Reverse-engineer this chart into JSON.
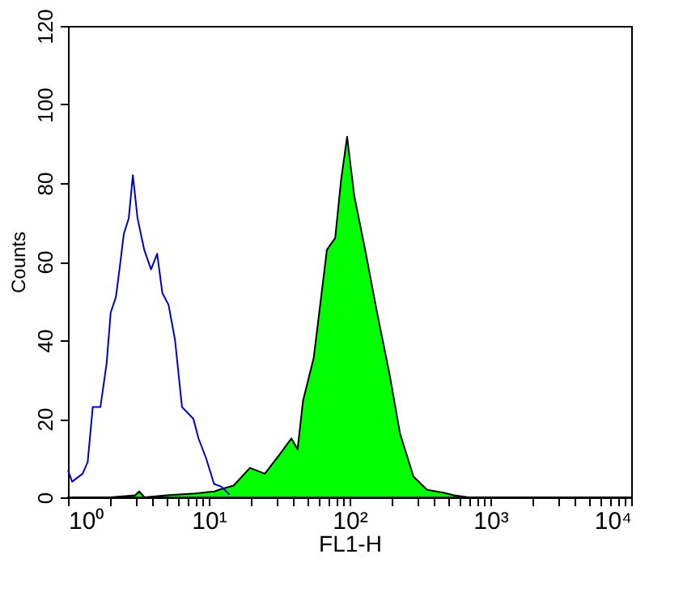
{
  "chart_data": {
    "type": "line",
    "xlabel": "FL1-H",
    "ylabel": "Counts",
    "log": "x",
    "xlim": [
      1,
      10000
    ],
    "ylim": [
      0,
      120
    ],
    "yticks": [
      0,
      20,
      40,
      60,
      80,
      100,
      120
    ],
    "xticks": [
      {
        "value": 1,
        "label": "10⁰"
      },
      {
        "value": 2,
        "label": null
      },
      {
        "value": 3,
        "label": null
      },
      {
        "value": 4,
        "label": null
      },
      {
        "value": 5,
        "label": null
      },
      {
        "value": 6,
        "label": null
      },
      {
        "value": 7,
        "label": null
      },
      {
        "value": 8,
        "label": null
      },
      {
        "value": 9,
        "label": null
      },
      {
        "value": 10,
        "label": "10¹"
      },
      {
        "value": 20,
        "label": null
      },
      {
        "value": 30,
        "label": null
      },
      {
        "value": 40,
        "label": null
      },
      {
        "value": 50,
        "label": null
      },
      {
        "value": 60,
        "label": null
      },
      {
        "value": 70,
        "label": null
      },
      {
        "value": 80,
        "label": null
      },
      {
        "value": 90,
        "label": null
      },
      {
        "value": 100,
        "label": "10²"
      },
      {
        "value": 200,
        "label": null
      },
      {
        "value": 300,
        "label": null
      },
      {
        "value": 400,
        "label": null
      },
      {
        "value": 500,
        "label": null
      },
      {
        "value": 600,
        "label": null
      },
      {
        "value": 700,
        "label": null
      },
      {
        "value": 800,
        "label": null
      },
      {
        "value": 900,
        "label": null
      },
      {
        "value": 1000,
        "label": "10³"
      },
      {
        "value": 2000,
        "label": null
      },
      {
        "value": 3000,
        "label": null
      },
      {
        "value": 4000,
        "label": null
      },
      {
        "value": 5000,
        "label": null
      },
      {
        "value": 6000,
        "label": null
      },
      {
        "value": 7000,
        "label": null
      },
      {
        "value": 8000,
        "label": null
      },
      {
        "value": 9000,
        "label": null
      },
      {
        "value": 10000,
        "label": "10⁴"
      }
    ],
    "grid": false,
    "series": [
      {
        "type": "area",
        "color": "#00ff00",
        "x": [
          1,
          2,
          3,
          3.2,
          3.5,
          5,
          8,
          11,
          12,
          15,
          19.6,
          25,
          32,
          38.6,
          42.7,
          46.7,
          55.6,
          69,
          79,
          87,
          96,
          108,
          129,
          155,
          192,
          228,
          284,
          355,
          464,
          552,
          700,
          10000
        ],
        "values": [
          0,
          0,
          0.5,
          1.5,
          0,
          0.5,
          1,
          1.5,
          2,
          3,
          7.5,
          6,
          11,
          15,
          12.2,
          24.6,
          35.5,
          63,
          66,
          80.8,
          91.8,
          76.7,
          63,
          47.9,
          31.4,
          16.3,
          5.3,
          1.9,
          1.2,
          0.5,
          0,
          0
        ]
      },
      {
        "color": "#0000cc",
        "x": [
          1,
          1.07,
          1.27,
          1.38,
          1.5,
          1.7,
          1.88,
          2.01,
          2.19,
          2.34,
          2.49,
          2.7,
          2.89,
          3.12,
          3.48,
          3.89,
          4.3,
          4.68,
          5.18,
          5.76,
          6.45,
          7.77,
          8.45,
          9.56,
          10.9,
          12.3,
          14
        ],
        "values": [
          6.9,
          4,
          6,
          9,
          23,
          23,
          34,
          47,
          51,
          59,
          67,
          71,
          82,
          71,
          63,
          58,
          62,
          52,
          49,
          40,
          23,
          20,
          15,
          10,
          3.4,
          2.7,
          0.7
        ]
      }
    ]
  }
}
